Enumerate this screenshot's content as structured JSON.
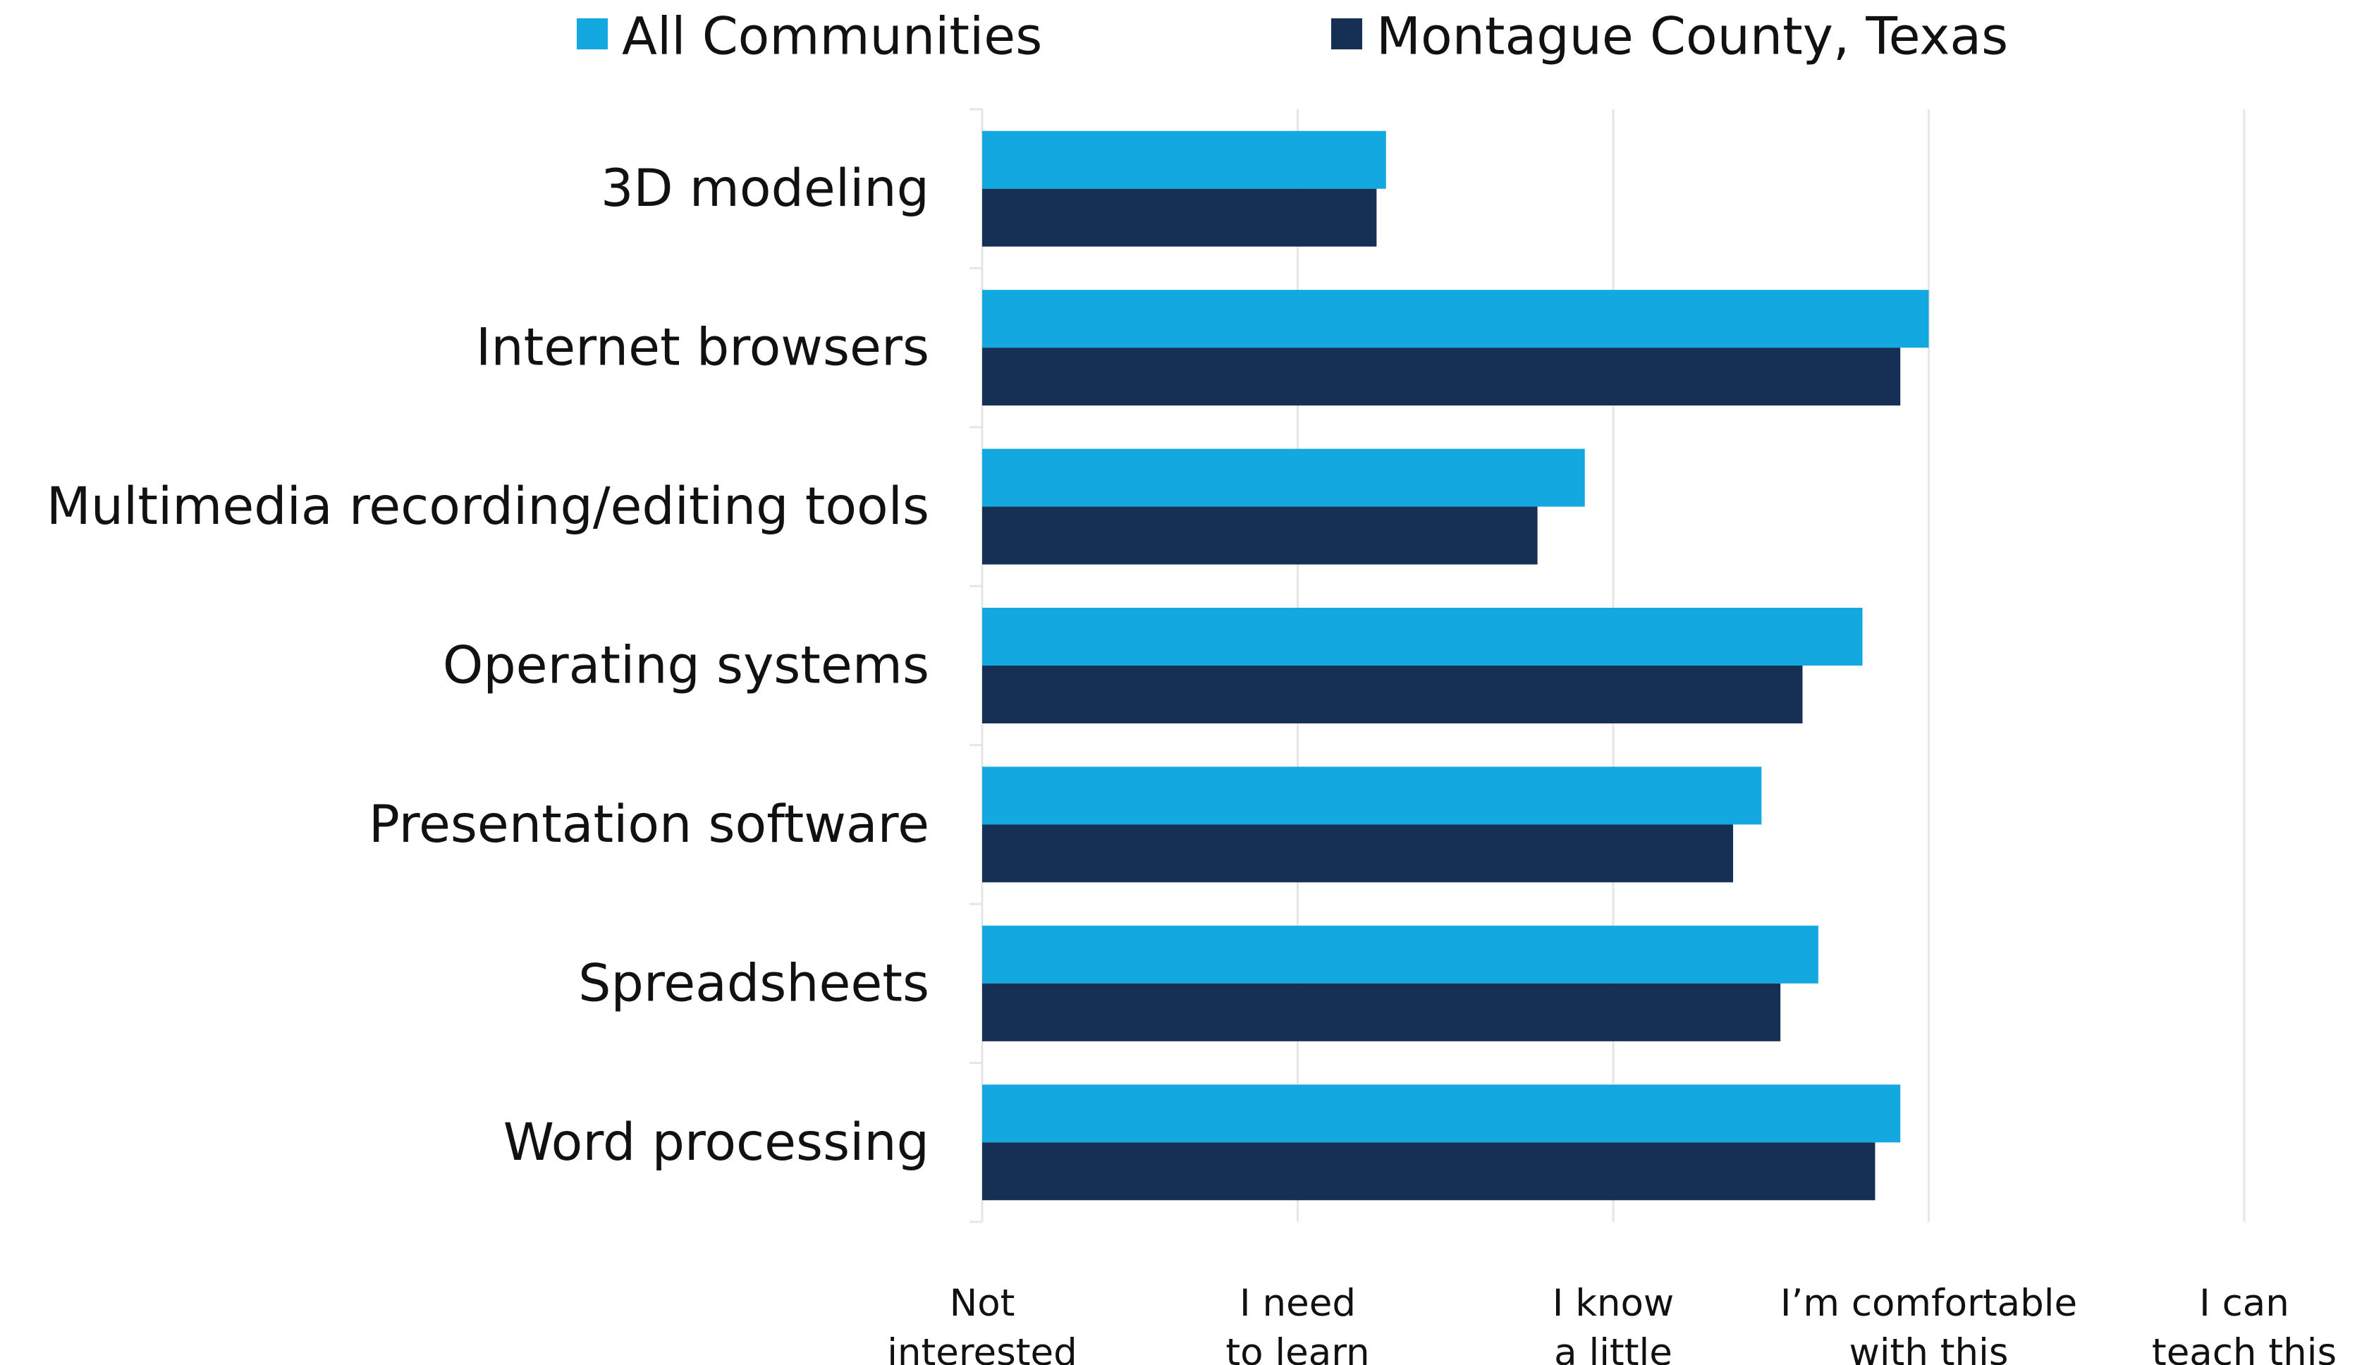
{
  "chart_data": {
    "type": "bar",
    "orientation": "horizontal",
    "categories": [
      "3D modeling",
      "Internet browsers",
      "Multimedia recording/editing tools",
      "Operating systems",
      "Presentation software",
      "Spreadsheets",
      "Word processing"
    ],
    "series": [
      {
        "name": "All Communities",
        "color": "#14a8e0",
        "values": [
          1.28,
          3.0,
          1.91,
          2.79,
          2.47,
          2.65,
          2.91
        ]
      },
      {
        "name": "Montague County, Texas",
        "color": "#152f55",
        "values": [
          1.25,
          2.91,
          1.76,
          2.6,
          2.38,
          2.53,
          2.83
        ]
      }
    ],
    "x_ticks": [
      [
        "Not",
        "interested"
      ],
      [
        "I need",
        "to learn"
      ],
      [
        "I know",
        "a little"
      ],
      [
        "I’m comfortable",
        "with this"
      ],
      [
        "I can",
        "teach this"
      ]
    ],
    "xlim": [
      0,
      4
    ],
    "grid": true,
    "legend_position": "top"
  }
}
